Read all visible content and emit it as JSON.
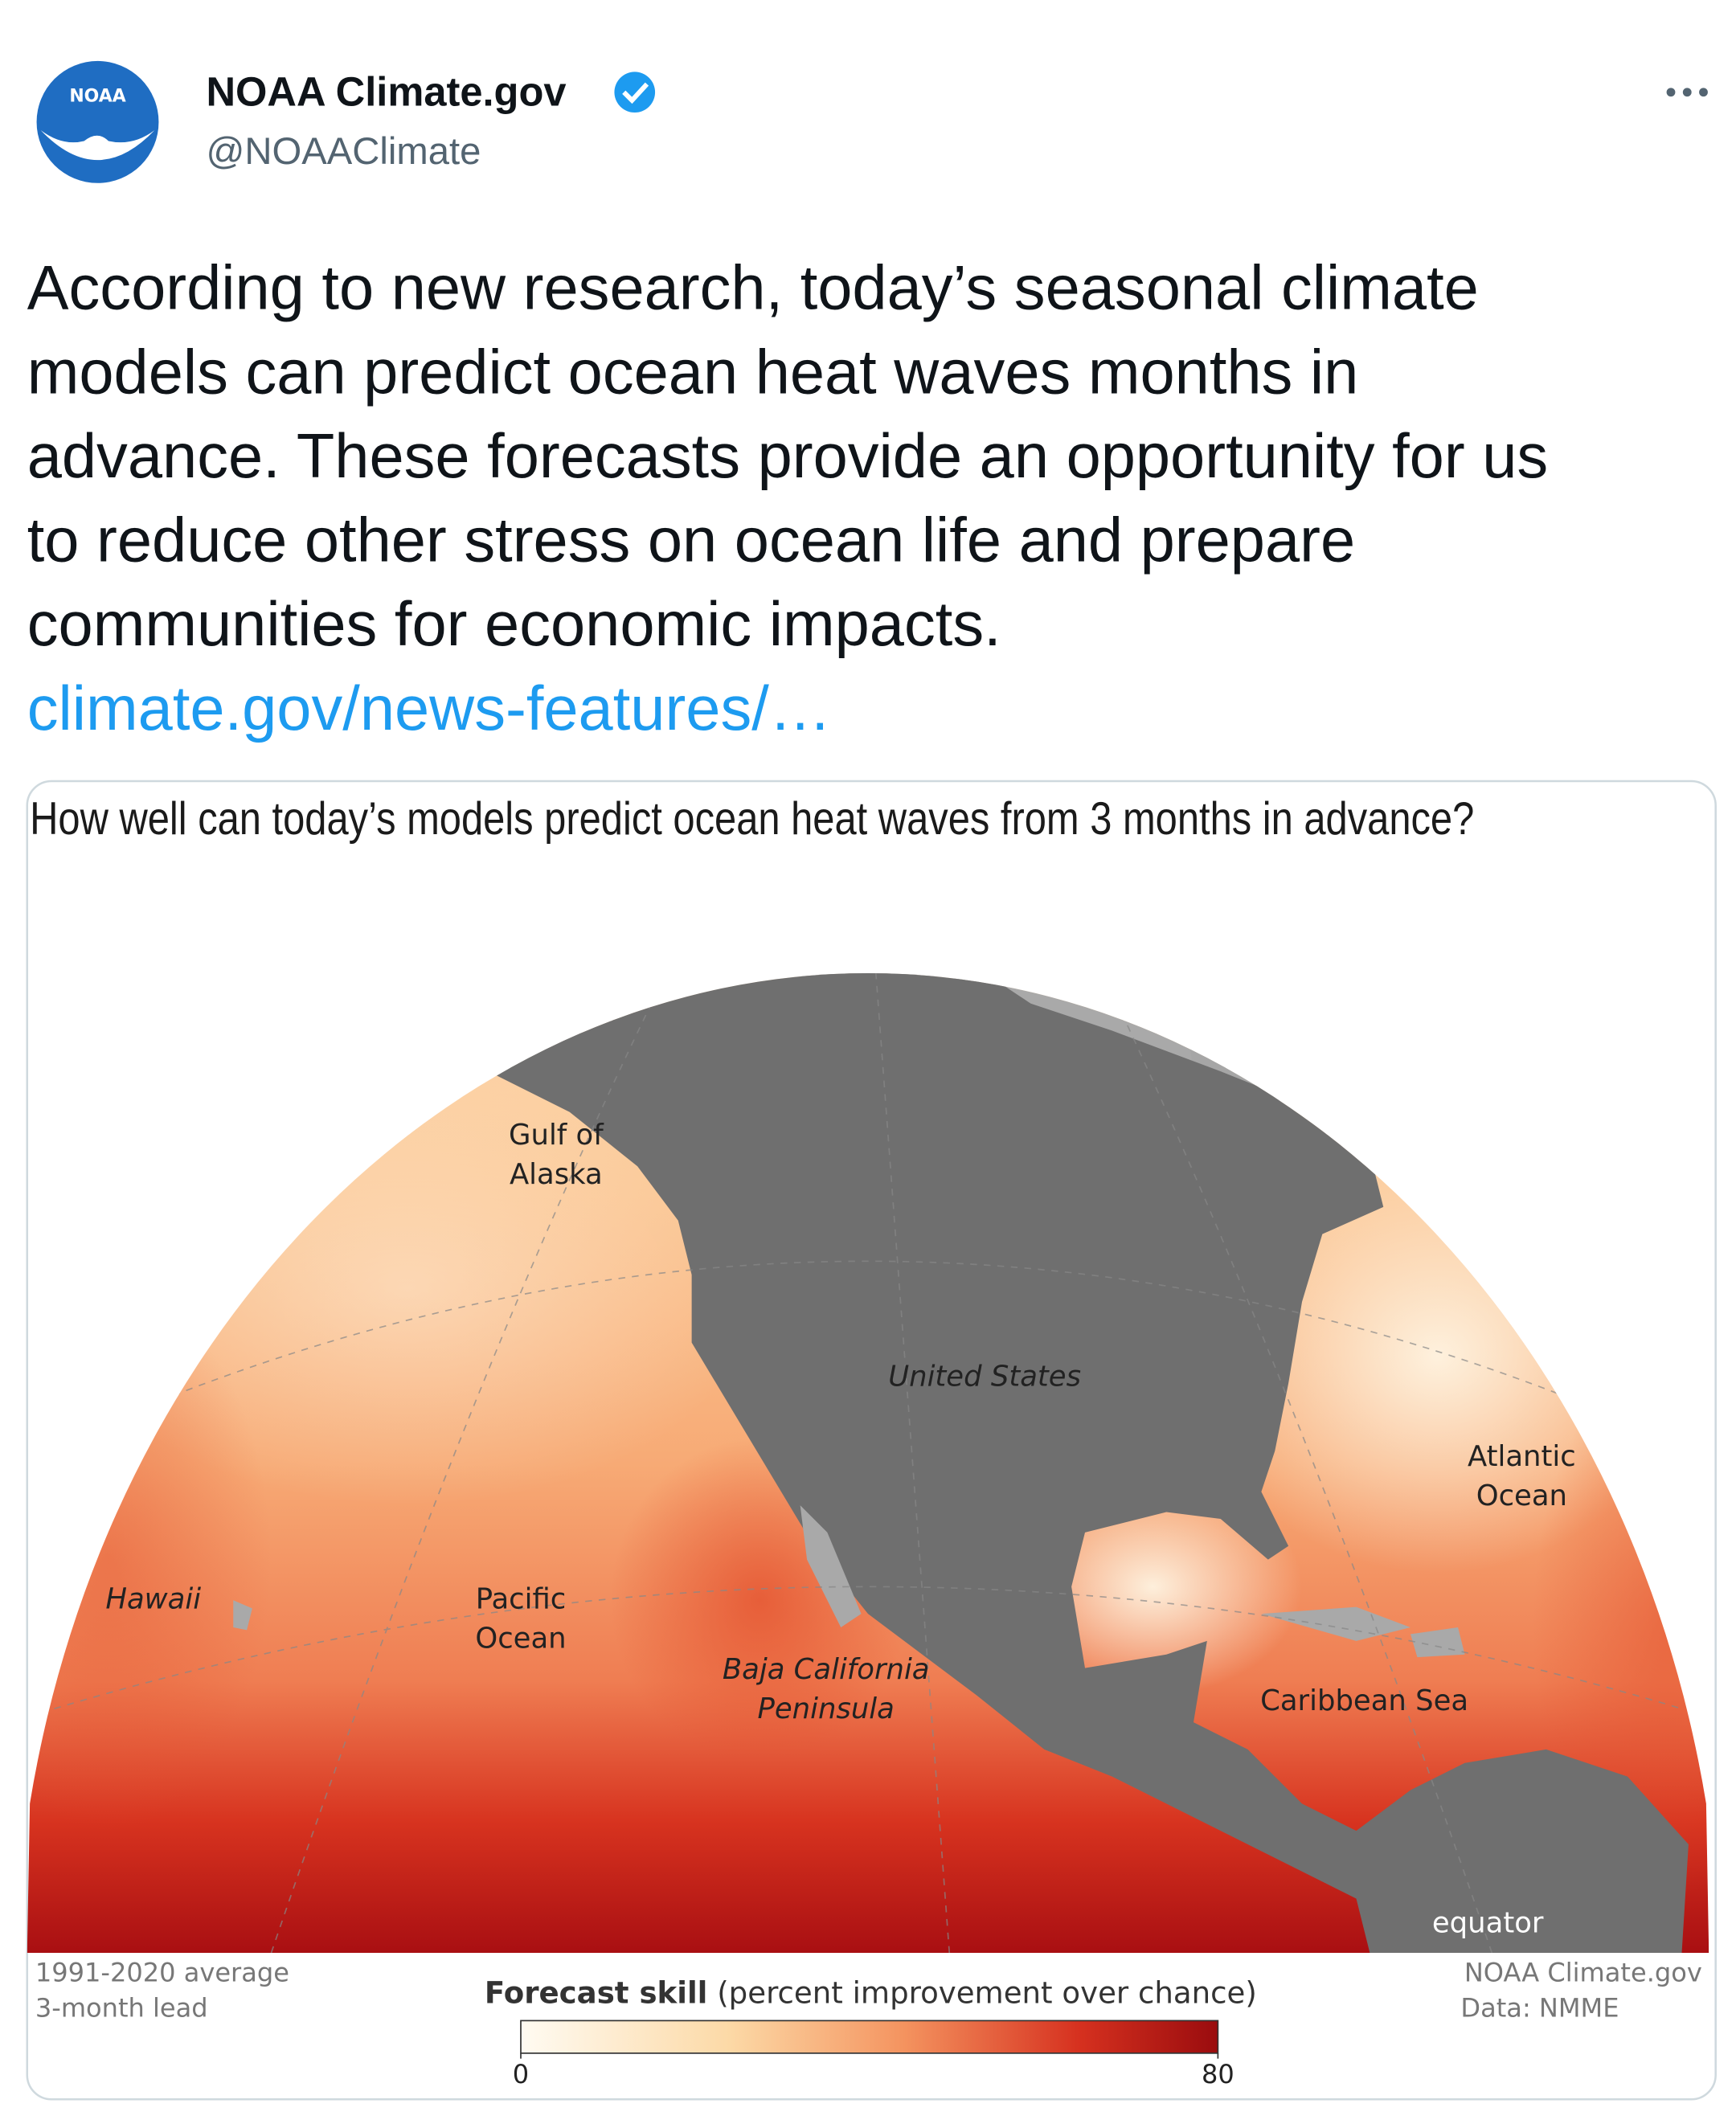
{
  "tweet": {
    "author": {
      "name": "NOAA Climate.gov",
      "handle": "@NOAAClimate",
      "logo_text": "NOAA"
    },
    "text_lines": [
      "According to new research, today’s seasonal climate",
      "models can predict ocean heat waves months in",
      "advance. These forecasts provide an opportunity for us",
      "to reduce other stress on ocean life and prepare",
      "communities for economic impacts."
    ],
    "link": "climate.gov/news-features/…"
  },
  "image": {
    "title": "How well can today’s models predict ocean heat waves from 3 months in advance?",
    "map_labels": [
      {
        "lines": [
          "Gulf of",
          "Alaska"
        ]
      },
      {
        "lines": [
          "United States"
        ]
      },
      {
        "lines": [
          "Atlantic",
          "Ocean"
        ]
      },
      {
        "lines": [
          "Hawaii"
        ]
      },
      {
        "lines": [
          "Pacific",
          "Ocean"
        ]
      },
      {
        "lines": [
          "Baja California",
          "Peninsula"
        ]
      },
      {
        "lines": [
          "Caribbean Sea"
        ]
      },
      {
        "lines": [
          "equator"
        ]
      }
    ],
    "legend": {
      "title": "Forecast skill",
      "subtitle": "(percent improvement over chance)",
      "min": 0,
      "max": 80
    },
    "notes_left": [
      "1991-2020 average",
      "3-month lead"
    ],
    "notes_right": [
      "NOAA Climate.gov",
      "Data: NMME"
    ]
  }
}
